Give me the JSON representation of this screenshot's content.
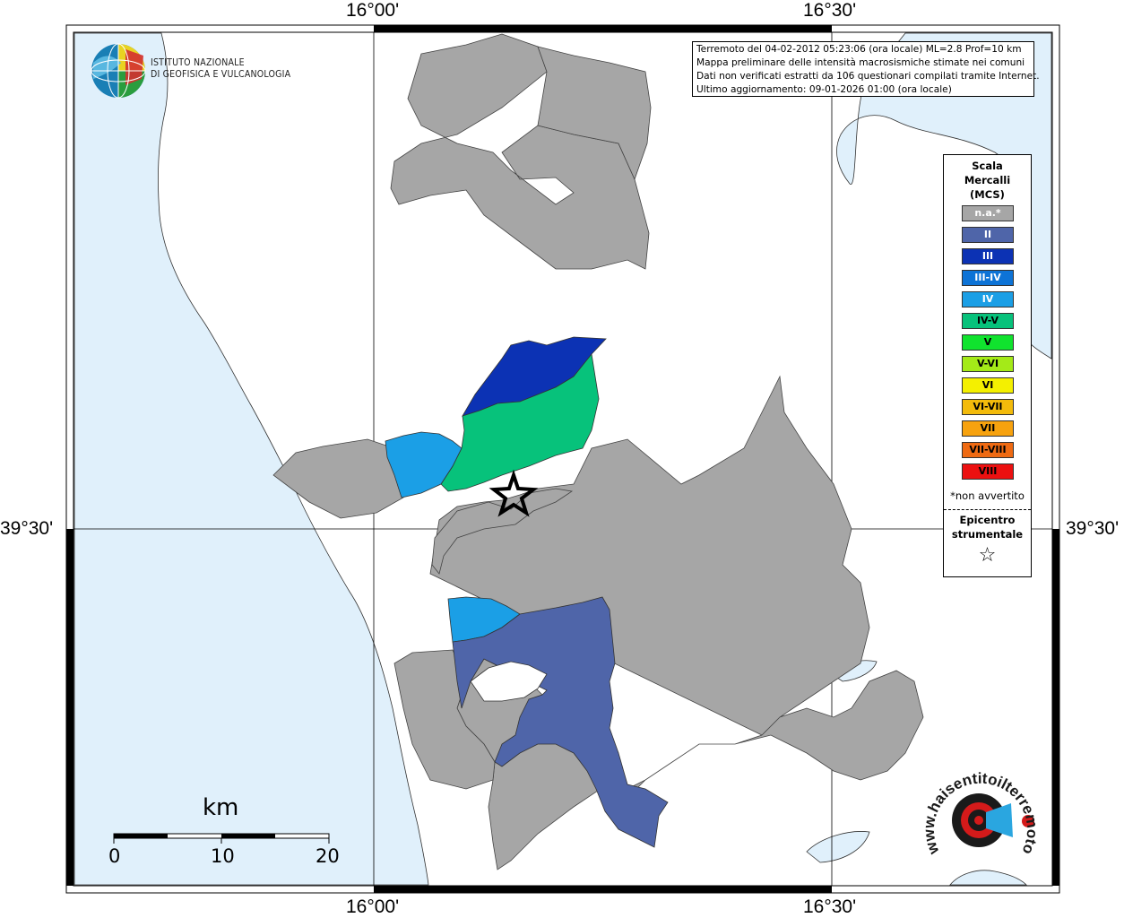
{
  "map": {
    "lon_labels": [
      "16°00'",
      "16°30'"
    ],
    "lat_labels": [
      "39°30'"
    ],
    "colors": {
      "sea": "#e0f0fb",
      "land": "#ffffff",
      "not_available": "#a6a6a6"
    }
  },
  "institute": {
    "name_line1": "ISTITUTO NAZIONALE",
    "name_line2": "DI GEOFISICA E VULCANOLOGIA",
    "logo_icon": "ingv-globe-logo"
  },
  "info": {
    "line1": "Terremoto del 04-02-2012 05:23:06 (ora locale) ML=2.8 Prof=10 km",
    "line2": "Mappa preliminare delle intensità macrosismiche stimate nei comuni",
    "line3": "Dati non verificati estratti da 106 questionari compilati tramite Internet.",
    "line4": "Ultimo aggiornamento: 09-01-2026 01:00 (ora locale)"
  },
  "legend": {
    "title_line1": "Scala",
    "title_line2": "Mercalli",
    "title_line3": "(MCS)",
    "items": [
      {
        "label": "n.a.*",
        "color": "#a6a6a6",
        "text_color": "#ffffff"
      },
      {
        "label": "II",
        "color": "#4f65a9",
        "text_color": "#ffffff"
      },
      {
        "label": "III",
        "color": "#0c32b4",
        "text_color": "#ffffff"
      },
      {
        "label": "III-IV",
        "color": "#0d73d6",
        "text_color": "#ffffff"
      },
      {
        "label": "IV",
        "color": "#1b9fe6",
        "text_color": "#ffffff"
      },
      {
        "label": "IV-V",
        "color": "#07c27b",
        "text_color": "#000000"
      },
      {
        "label": "V",
        "color": "#10e32e",
        "text_color": "#000000"
      },
      {
        "label": "V-VI",
        "color": "#a4ea18",
        "text_color": "#000000"
      },
      {
        "label": "VI",
        "color": "#f4f000",
        "text_color": "#000000"
      },
      {
        "label": "VI-VII",
        "color": "#f3bb0b",
        "text_color": "#000000"
      },
      {
        "label": "VII",
        "color": "#f7a20e",
        "text_color": "#000000"
      },
      {
        "label": "VII-VIII",
        "color": "#ef6a12",
        "text_color": "#000000"
      },
      {
        "label": "VIII",
        "color": "#ec1010",
        "text_color": "#000000"
      }
    ],
    "note": "*non avvertito",
    "epicenter_line1": "Epicentro",
    "epicenter_line2": "strumentale",
    "epicenter_icon": "star-outline-icon"
  },
  "scale_bar": {
    "unit": "km",
    "ticks": [
      "0",
      "10",
      "20"
    ]
  },
  "watermark": {
    "text": "www.haisentitoilterremoto.it",
    "icon": "target-megaphone-icon"
  }
}
